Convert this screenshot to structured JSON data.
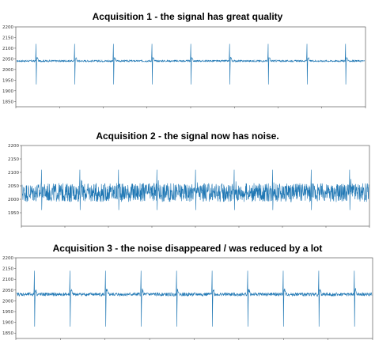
{
  "chart_data": [
    {
      "type": "line",
      "title": "Acquisition 1 - the signal has great quality",
      "xlabel": "",
      "ylabel": "",
      "ylim": [
        1825,
        2200
      ],
      "yticks": [
        1850,
        1900,
        1950,
        2000,
        2050,
        2100,
        2150,
        2200
      ],
      "grid": false,
      "series": [
        {
          "color": "#1f77b4",
          "baseline": 2040,
          "noise_amplitude": 4,
          "spike_count": 9,
          "spike_peak": 2120,
          "spike_trough": 1930
        }
      ]
    },
    {
      "type": "line",
      "title": "Acquisition 2 - the signal now has noise.",
      "xlabel": "",
      "ylabel": "",
      "ylim": [
        1900,
        2200
      ],
      "yticks": [
        1950,
        2000,
        2050,
        2100,
        2150,
        2200
      ],
      "grid": false,
      "series": [
        {
          "color": "#1f77b4",
          "baseline": 2025,
          "noise_amplitude": 35,
          "spike_count": 9,
          "spike_peak": 2110,
          "spike_trough": 1960
        }
      ]
    },
    {
      "type": "line",
      "title": "Acquisition 3 - the noise disappeared / was reduced by a lot",
      "xlabel": "",
      "ylabel": "",
      "ylim": [
        1825,
        2200
      ],
      "yticks": [
        1850,
        1900,
        1950,
        2000,
        2050,
        2100,
        2150,
        2200
      ],
      "grid": false,
      "series": [
        {
          "color": "#1f77b4",
          "baseline": 2030,
          "noise_amplitude": 8,
          "spike_count": 10,
          "spike_peak": 2140,
          "spike_trough": 1880
        }
      ]
    }
  ]
}
